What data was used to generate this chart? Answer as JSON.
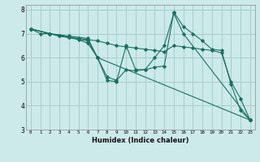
{
  "xlabel": "Humidex (Indice chaleur)",
  "xlim": [
    -0.5,
    23.5
  ],
  "ylim": [
    3,
    8.2
  ],
  "yticks": [
    3,
    4,
    5,
    6,
    7,
    8
  ],
  "xticks": [
    0,
    1,
    2,
    3,
    4,
    5,
    6,
    7,
    8,
    9,
    10,
    11,
    12,
    13,
    14,
    15,
    16,
    17,
    18,
    19,
    20,
    21,
    22,
    23
  ],
  "bg_color": "#cceaea",
  "grid_color": "#aacccc",
  "line_color": "#1a7060",
  "lines": [
    {
      "x": [
        0,
        1,
        2,
        3,
        4,
        5,
        6,
        7,
        8,
        9,
        10,
        11,
        12,
        13,
        14,
        15,
        16,
        17,
        18,
        19,
        20,
        21,
        22,
        23
      ],
      "y": [
        7.2,
        7.0,
        7.0,
        6.9,
        6.85,
        6.8,
        6.75,
        6.7,
        6.6,
        6.5,
        6.45,
        6.4,
        6.35,
        6.3,
        6.25,
        6.5,
        6.45,
        6.4,
        6.35,
        6.3,
        6.2,
        5.0,
        4.3,
        3.4
      ]
    },
    {
      "x": [
        0,
        2,
        4,
        6,
        7,
        8,
        9,
        10,
        11,
        12,
        13,
        14,
        15,
        16,
        17,
        18,
        19,
        20,
        21,
        22,
        23
      ],
      "y": [
        7.2,
        7.0,
        6.9,
        6.8,
        6.0,
        5.2,
        5.05,
        5.5,
        5.45,
        5.5,
        5.6,
        5.65,
        7.9,
        7.3,
        7.0,
        6.7,
        6.35,
        6.3,
        4.9,
        3.8,
        3.4
      ]
    },
    {
      "x": [
        0,
        2,
        4,
        5,
        6,
        7,
        8,
        9,
        10,
        11,
        12,
        13,
        14,
        15,
        16,
        23
      ],
      "y": [
        7.2,
        7.0,
        6.85,
        6.75,
        6.6,
        6.0,
        5.05,
        5.0,
        6.5,
        5.5,
        5.5,
        6.0,
        6.5,
        7.85,
        7.0,
        3.4
      ]
    },
    {
      "x": [
        0,
        3,
        6,
        7,
        23
      ],
      "y": [
        7.2,
        6.9,
        6.7,
        6.0,
        3.4
      ]
    }
  ]
}
